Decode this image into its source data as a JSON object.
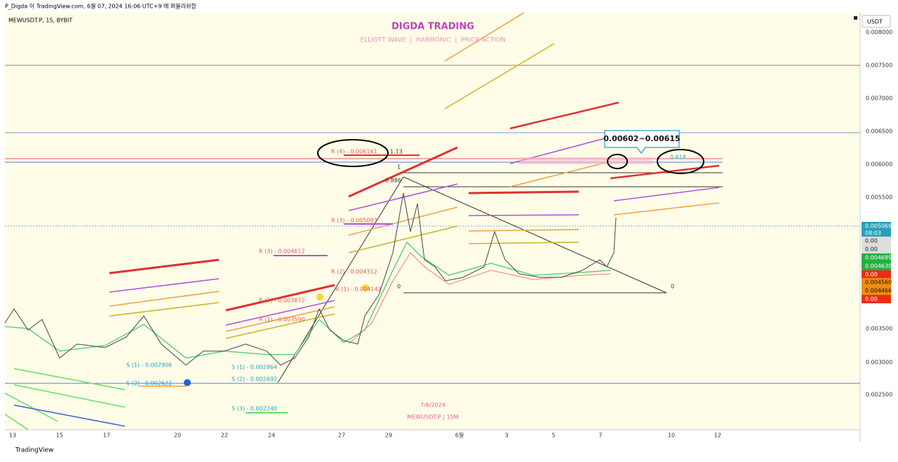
{
  "header": {
    "publish_line": "P_Digda 이 TradingView.com, 6월 07, 2024 16:06 UTC+9 에 퍼블리쉬함",
    "symbol_line": "MEWUSDT.P, 15, BYBIT"
  },
  "branding": {
    "title": "DIGDA TRADING",
    "subtitle": "ELLIOTT WAVE  |  HARMONIC  |  PRICE ACTION",
    "watermark_date": "7/6/2024",
    "watermark_symbol": "MEWUSDT.P | 15M"
  },
  "price_axis": {
    "currency": "USDT",
    "labels": [
      "0.008000",
      "0.007500",
      "0.007000",
      "0.006500",
      "0.006000",
      "0.005500",
      "0.003500",
      "0.003000",
      "0.002500"
    ]
  },
  "price_tags": [
    {
      "text": "0.005069",
      "sub": "08:03"
    },
    {
      "text": "0.00"
    },
    {
      "text": "0.00"
    },
    {
      "text": "0.004689"
    },
    {
      "text": "0.004630"
    },
    {
      "text": "0.00"
    },
    {
      "text": "0.004560"
    },
    {
      "text": "0.004466"
    },
    {
      "text": "0.00"
    }
  ],
  "time_axis": {
    "labels": [
      "13",
      "15",
      "17",
      "20",
      "22",
      "24",
      "27",
      "29",
      "6월",
      "3",
      "5",
      "7",
      "10",
      "12"
    ]
  },
  "annotations": [
    "R (4) - 0.006141",
    "1.13",
    "1",
    "0.886",
    "R (3) - 0.005093",
    "R (3) - 0.004612",
    "R (2) - 0.004312",
    "R (1) - 0.004142",
    "0",
    "R (2) - 0.003872",
    "R (1) - 0.003590",
    "S (1) - 0.002906",
    "S (2) - 0.002622",
    "S (1) - 0.002864",
    "S (2) - 0.002692",
    "S (3) - 0.002240",
    "0.618",
    "0"
  ],
  "callout": "0.00602~0.00615",
  "footer": "TradingView"
}
